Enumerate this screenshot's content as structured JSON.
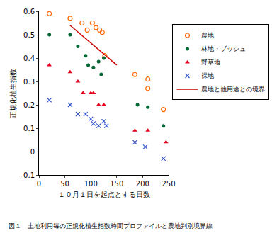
{
  "chart_data": {
    "type": "scatter",
    "title": "図１　土地利用毎の正規化植生指数時間プロファイルと農地判別境界線",
    "x_label": "１０月１日を起点とする日数",
    "y_label": "正規化植生指数",
    "xlim": [
      0,
      250
    ],
    "xticks": [
      0,
      50,
      100,
      150,
      200,
      250
    ],
    "ylim": [
      -0.1,
      0.6
    ],
    "yticks": [
      -0.1,
      0,
      0.1,
      0.2,
      0.3,
      0.4,
      0.5,
      0.6
    ],
    "grid": false,
    "legend": "right",
    "series": [
      {
        "name": "農地",
        "color": "#ff6600",
        "marker": "circle-open",
        "x": [
          20,
          60,
          83,
          93,
          103,
          110,
          117,
          122,
          127,
          185,
          210,
          210,
          240
        ],
        "values": [
          0.59,
          0.57,
          0.55,
          0.52,
          0.55,
          0.53,
          0.52,
          0.51,
          0.41,
          0.33,
          0.31,
          0.27,
          0.18
        ]
      },
      {
        "name": "林地・ブッシュ",
        "color": "#006633",
        "marker": "circle",
        "x": [
          20,
          60,
          75,
          90,
          95,
          105,
          115,
          120,
          125,
          190,
          210,
          240
        ],
        "values": [
          0.5,
          0.5,
          0.45,
          0.41,
          0.37,
          0.36,
          0.385,
          0.33,
          0.4,
          0.2,
          0.19,
          0.11
        ]
      },
      {
        "name": "野草地",
        "color": "#e6001e",
        "marker": "triangle-up",
        "x": [
          20,
          60,
          75,
          85,
          100,
          105,
          115,
          125,
          185,
          210,
          245
        ],
        "values": [
          0.37,
          0.34,
          0.3,
          0.25,
          0.25,
          0.25,
          0.2,
          0.2,
          0.09,
          0.09,
          0.04
        ]
      },
      {
        "name": "裸地",
        "color": "#3355cc",
        "marker": "x",
        "x": [
          20,
          60,
          75,
          90,
          100,
          105,
          115,
          125,
          130,
          185,
          205,
          240
        ],
        "values": [
          0.22,
          0.2,
          0.16,
          0.16,
          0.14,
          0.12,
          0.11,
          0.13,
          0.11,
          0.04,
          0.02,
          -0.03
        ]
      },
      {
        "name": "農地と他用途との境界",
        "color": "#cc0000",
        "type": "line",
        "line_style": "solid",
        "x": [
          60,
          150
        ],
        "values": [
          0.54,
          0.37
        ]
      }
    ]
  }
}
